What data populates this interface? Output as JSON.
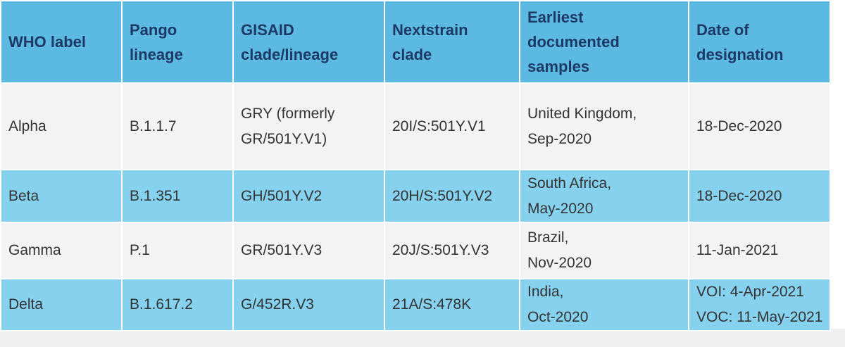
{
  "table": {
    "header": [
      [
        "WHO label"
      ],
      [
        "Pango",
        "lineage"
      ],
      [
        "GISAID",
        "clade/lineage"
      ],
      [
        "Nextstrain",
        "clade"
      ],
      [
        "Earliest",
        "documented",
        "samples"
      ],
      [
        "Date of",
        "designation"
      ]
    ],
    "rows": [
      [
        [
          "Alpha"
        ],
        [
          "B.1.1.7"
        ],
        [
          "GRY (formerly",
          "GR/501Y.V1)"
        ],
        [
          "20I/S:501Y.V1"
        ],
        [
          "United Kingdom,",
          "Sep-2020"
        ],
        [
          "18-Dec-2020"
        ]
      ],
      [
        [
          "Beta"
        ],
        [
          "B.1.351"
        ],
        [
          "GH/501Y.V2"
        ],
        [
          "20H/S:501Y.V2"
        ],
        [
          "South Africa,",
          "May-2020"
        ],
        [
          "18-Dec-2020"
        ]
      ],
      [
        [
          "Gamma"
        ],
        [
          "P.1"
        ],
        [
          "GR/501Y.V3"
        ],
        [
          "20J/S:501Y.V3"
        ],
        [
          "Brazil,",
          "Nov-2020"
        ],
        [
          "11-Jan-2021"
        ]
      ],
      [
        [
          "Delta"
        ],
        [
          "B.1.617.2"
        ],
        [
          "G/452R.V3"
        ],
        [
          "21A/S:478K"
        ],
        [
          "India,",
          "Oct-2020"
        ],
        [
          "VOI: 4-Apr-2021",
          "VOC: 11-May-2021"
        ]
      ]
    ]
  }
}
